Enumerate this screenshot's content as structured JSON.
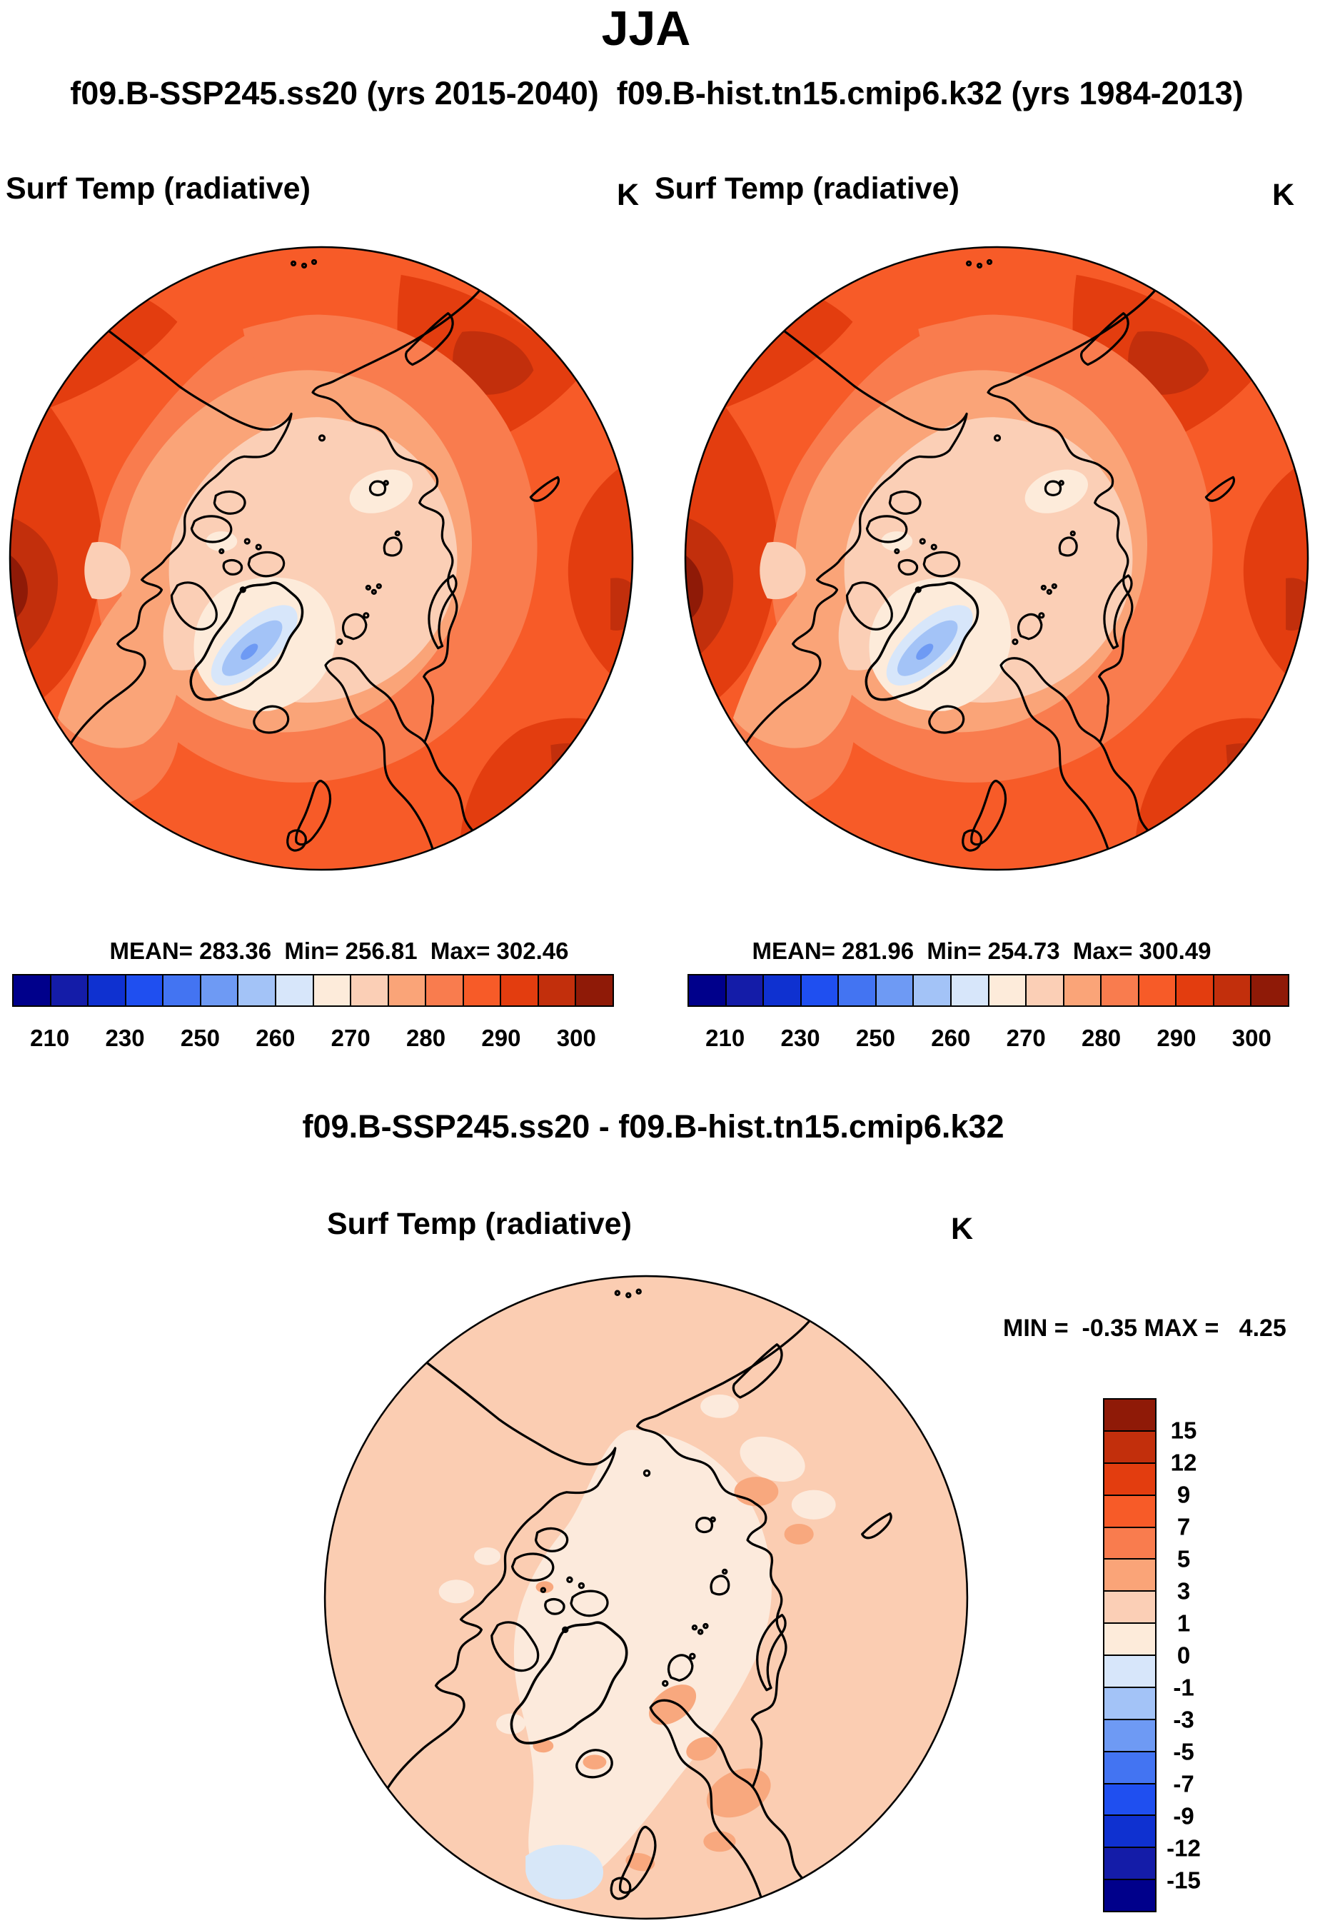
{
  "header": {
    "title": "JJA",
    "subtitle": "f09.B-SSP245.ss20 (yrs 2015-2040)  f09.B-hist.tn15.cmip6.k32 (yrs 1984-2013)"
  },
  "palette_cold_to_warm": [
    "#00008B",
    "#141CA8",
    "#0F31D0",
    "#1F4FF0",
    "#4374F2",
    "#6E9AF4",
    "#A3C3F7",
    "#D7E6FA",
    "#FDEBDA",
    "#FBCFB6",
    "#FAA478",
    "#F97C4E",
    "#F75B28",
    "#E33D0F",
    "#C22F0C",
    "#8F1A07"
  ],
  "panels": [
    {
      "title": "Surf Temp (radiative)",
      "units": "K",
      "stats_line": "MEAN= 283.36  Min= 256.81  Max= 302.46",
      "mean": "283.36",
      "min": "256.81",
      "max": "302.46",
      "colorbar_tick_labels": [
        "210",
        "230",
        "250",
        "260",
        "270",
        "280",
        "290",
        "300"
      ]
    },
    {
      "title": "Surf Temp (radiative)",
      "units": "K",
      "stats_line": "MEAN= 281.96  Min= 254.73  Max= 300.49",
      "mean": "281.96",
      "min": "254.73",
      "max": "300.49",
      "colorbar_tick_labels": [
        "210",
        "230",
        "250",
        "260",
        "270",
        "280",
        "290",
        "300"
      ]
    }
  ],
  "diff_panel": {
    "title": "f09.B-SSP245.ss20 - f09.B-hist.tn15.cmip6.k32",
    "field_title": "Surf Temp (radiative)",
    "units": "K",
    "minmax_line": "MIN =  -0.35 MAX =   4.25",
    "min": "-0.35",
    "max": "4.25",
    "colorbar_tick_labels": [
      "15",
      "12",
      "9",
      "7",
      "5",
      "3",
      "1",
      "0",
      "-1",
      "-3",
      "-5",
      "-7",
      "-9",
      "-12",
      "-15"
    ]
  },
  "map_colors": {
    "temp_center_ice": "#FBCFB6",
    "temp_cream": "#FDEBDA",
    "temp_salmon": "#FAA478",
    "temp_orange": "#F97C4E",
    "temp_base": "#F75B28",
    "temp_dark": "#E33D0F",
    "temp_darker": "#C22F0C",
    "temp_darkest": "#8F1A07",
    "greenland_ice_outer": "#D7E6FA",
    "greenland_ice_mid": "#A3C3F7",
    "greenland_ice_core": "#6E9AF4",
    "diff_base": "#FBCDB2",
    "diff_pale": "#FCEADC",
    "diff_warm_spot": "#F8A87E",
    "diff_cool_spot": "#D7E7F8",
    "coastline": "#000000"
  }
}
